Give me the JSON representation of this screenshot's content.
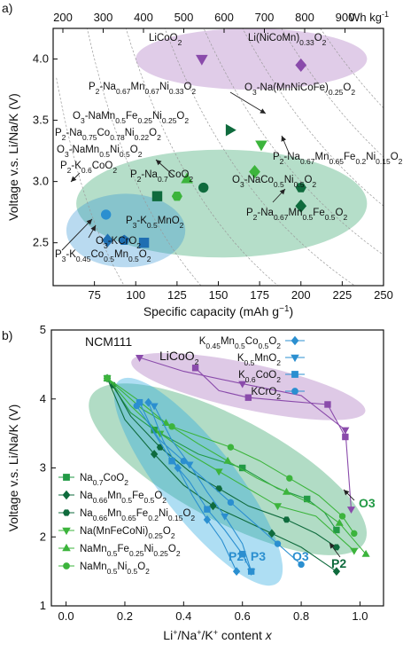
{
  "chart_data": [
    {
      "panel_label": "a)",
      "type": "scatter",
      "xlabel": "Specific capacity (mAh g",
      "xlabel_sup": "−1",
      "xlabel_end": ")",
      "ylabel": "Voltage v.s. Li/Na/K (V)",
      "xlim": [
        50,
        250
      ],
      "ylim": [
        2.15,
        4.25
      ],
      "x_ticks": [
        75,
        100,
        125,
        150,
        175,
        200,
        225,
        250
      ],
      "y_ticks": [
        2.5,
        3.0,
        3.5,
        4.0
      ],
      "top_axis": {
        "ticks": [
          200,
          300,
          400,
          500,
          600,
          700,
          800,
          900
        ],
        "unit": "Wh kg",
        "unit_sup": "-1"
      },
      "groups": [
        {
          "name": "Li",
          "color": "#a064b8",
          "region": {
            "cx": 170,
            "cy": 4.0,
            "rx": 70,
            "ry": 0.25
          }
        },
        {
          "name": "Na",
          "color": "#1f9a5a",
          "region": {
            "cx": 152,
            "cy": 2.82,
            "rx": 88,
            "ry": 0.44
          }
        },
        {
          "name": "K",
          "color": "#2b8fd0",
          "region": {
            "cx": 94,
            "cy": 2.6,
            "rx": 36,
            "ry": 0.3
          }
        }
      ],
      "points": [
        {
          "label": "LiCoO2",
          "x": 140,
          "y": 4.0,
          "marker": "triangle-down",
          "color": "#8a4bab"
        },
        {
          "label": "Li(NiCoMn)0.33O2",
          "x": 200,
          "y": 3.95,
          "marker": "diamond",
          "color": "#8a4bab"
        },
        {
          "label": "P2-Na0.67Mn0.67Ni0.33O2",
          "x": 157,
          "y": 3.42,
          "marker": "triangle-right",
          "color": "#0f6b3d"
        },
        {
          "label": "O3-Na(MnNiCoFe)0.25O2",
          "x": 176,
          "y": 3.3,
          "marker": "triangle-down",
          "color": "#3cb43c"
        },
        {
          "label": "O3-NaMn0.5Fe0.25Ni0.25O2",
          "x": 131,
          "y": 3.02,
          "marker": "triangle-up",
          "color": "#3cb43c"
        },
        {
          "label": "P2-Na0.75Co0.78Ni0.22O2",
          "x": 141,
          "y": 2.95,
          "marker": "circle",
          "color": "#0f6b3d"
        },
        {
          "label": "O3-NaMn0.5Ni0.5O2",
          "x": 125,
          "y": 2.88,
          "marker": "hexagon",
          "color": "#3cb43c"
        },
        {
          "label": "P2-Na0.67Mn0.65Fe0.2Ni0.15O2",
          "x": 172,
          "y": 3.08,
          "marker": "diamond",
          "color": "#3cb43c"
        },
        {
          "label": "P2-Na0.7CoO2",
          "x": 113,
          "y": 2.88,
          "marker": "square",
          "color": "#0f6b3d"
        },
        {
          "label": "O3-NaCo0.5Ni0.5O2",
          "x": 200,
          "y": 2.95,
          "marker": "hexagon",
          "color": "#0f6b3d"
        },
        {
          "label": "P2-Na0.67Mn0.5Fe0.5O2",
          "x": 200,
          "y": 2.8,
          "marker": "diamond",
          "color": "#0f6b3d"
        },
        {
          "label": "P2-K0.6CoO2",
          "x": 82,
          "y": 2.73,
          "marker": "circle",
          "color": "#2b8fd0"
        },
        {
          "label": "P3-K0.45Co0.5Mn0.5O2",
          "x": 83,
          "y": 2.52,
          "marker": "diamond",
          "color": "#1f6fb2"
        },
        {
          "label": "O3-KCrO2",
          "x": 93,
          "y": 2.52,
          "marker": "pentagon",
          "color": "#1f6fb2"
        },
        {
          "label": "P3-K0.5MnO2",
          "x": 105,
          "y": 2.5,
          "marker": "square",
          "color": "#1f6fb2"
        }
      ]
    },
    {
      "panel_label": "b)",
      "type": "line",
      "xlabel": "Li+/Na+/K+ content x",
      "ylabel": "Voltage v.s. Li/Na/K (V)",
      "xlim": [
        -0.05,
        1.08
      ],
      "ylim": [
        1,
        5
      ],
      "x_ticks": [
        0.0,
        0.2,
        0.4,
        0.6,
        0.8,
        1.0
      ],
      "y_ticks": [
        1,
        2,
        3,
        4,
        5
      ],
      "annotations": {
        "ncm": "NCM111",
        "lco": "LiCoO2",
        "o3": "O3",
        "p2": "P2",
        "p2p3": "P2, P3",
        "o3k": "O3"
      },
      "series": [
        {
          "name": "NCM111",
          "group": "Li",
          "color": "#8a4bab",
          "marker": "triangle-down",
          "points": [
            [
              0.25,
              4.6
            ],
            [
              0.4,
              4.4
            ],
            [
              0.6,
              4.22
            ],
            [
              0.8,
              4.05
            ],
            [
              0.95,
              3.55
            ],
            [
              0.97,
              2.4
            ]
          ]
        },
        {
          "name": "LiCoO2",
          "group": "Li",
          "color": "#8a4bab",
          "marker": "square",
          "points": [
            [
              0.44,
              4.45
            ],
            [
              0.52,
              4.12
            ],
            [
              0.62,
              4.02
            ],
            [
              0.75,
              3.97
            ],
            [
              0.89,
              3.92
            ],
            [
              0.95,
              3.45
            ]
          ]
        },
        {
          "name": "Na0.7CoO2",
          "group": "Na",
          "color": "#229a45",
          "marker": "square",
          "legend": true,
          "points": [
            [
              0.14,
              4.3
            ],
            [
              0.22,
              3.8
            ],
            [
              0.3,
              3.55
            ],
            [
              0.45,
              3.2
            ],
            [
              0.6,
              3.0
            ],
            [
              0.72,
              2.7
            ],
            [
              0.82,
              2.55
            ],
            [
              0.88,
              2.35
            ],
            [
              0.92,
              2.1
            ]
          ]
        },
        {
          "name": "Na0.66Mn0.5Fe0.5O2",
          "group": "Na",
          "color": "#0f6b3d",
          "marker": "diamond",
          "legend": true,
          "points": [
            [
              0.14,
              4.3
            ],
            [
              0.2,
              3.7
            ],
            [
              0.3,
              3.2
            ],
            [
              0.4,
              2.75
            ],
            [
              0.5,
              2.45
            ],
            [
              0.6,
              2.25
            ],
            [
              0.7,
              2.05
            ],
            [
              0.8,
              1.85
            ],
            [
              0.92,
              1.5
            ]
          ]
        },
        {
          "name": "Na0.66Mn0.65Fe0.2Ni0.15O2",
          "group": "Na",
          "color": "#0f6b3d",
          "marker": "hexagon",
          "legend": true,
          "points": [
            [
              0.16,
              4.2
            ],
            [
              0.22,
              3.75
            ],
            [
              0.32,
              3.3
            ],
            [
              0.42,
              2.95
            ],
            [
              0.52,
              2.7
            ],
            [
              0.62,
              2.45
            ],
            [
              0.75,
              2.25
            ],
            [
              0.85,
              2.05
            ],
            [
              0.92,
              1.85
            ]
          ]
        },
        {
          "name": "Na(MnFeCoNi)0.25O2",
          "group": "Na",
          "color": "#3cb43c",
          "marker": "triangle-down",
          "legend": true,
          "points": [
            [
              0.14,
              4.3
            ],
            [
              0.22,
              3.9
            ],
            [
              0.32,
              3.5
            ],
            [
              0.42,
              3.2
            ],
            [
              0.52,
              2.95
            ],
            [
              0.62,
              2.7
            ],
            [
              0.72,
              2.45
            ],
            [
              0.85,
              2.3
            ],
            [
              0.98,
              1.8
            ]
          ]
        },
        {
          "name": "NaMn0.5Fe0.25Ni0.25O2",
          "group": "Na",
          "color": "#3cb43c",
          "marker": "triangle-up",
          "legend": true,
          "points": [
            [
              0.14,
              4.3
            ],
            [
              0.24,
              4.0
            ],
            [
              0.34,
              3.65
            ],
            [
              0.45,
              3.35
            ],
            [
              0.55,
              3.1
            ],
            [
              0.65,
              2.85
            ],
            [
              0.75,
              2.65
            ],
            [
              0.85,
              2.45
            ],
            [
              0.93,
              2.2
            ],
            [
              1.02,
              1.75
            ]
          ]
        },
        {
          "name": "NaMn0.5Ni0.5O2",
          "group": "Na",
          "color": "#3cb43c",
          "marker": "circle",
          "legend": true,
          "points": [
            [
              0.14,
              4.3
            ],
            [
              0.26,
              3.85
            ],
            [
              0.36,
              3.6
            ],
            [
              0.46,
              3.45
            ],
            [
              0.56,
              3.3
            ],
            [
              0.66,
              3.1
            ],
            [
              0.76,
              2.85
            ],
            [
              0.86,
              2.6
            ],
            [
              0.94,
              2.3
            ],
            [
              0.98,
              2.05
            ]
          ]
        },
        {
          "name": "K0.45Mn0.5Co0.5O2",
          "group": "K",
          "color": "#2b8fd0",
          "marker": "diamond",
          "legend": true,
          "points": [
            [
              0.28,
              3.95
            ],
            [
              0.33,
              3.4
            ],
            [
              0.38,
              3.0
            ],
            [
              0.43,
              2.6
            ],
            [
              0.48,
              2.25
            ],
            [
              0.53,
              1.95
            ],
            [
              0.58,
              1.5
            ]
          ]
        },
        {
          "name": "K0.5MnO2",
          "group": "K",
          "color": "#2b8fd0",
          "marker": "triangle-down",
          "legend": true,
          "points": [
            [
              0.3,
              3.9
            ],
            [
              0.36,
              3.4
            ],
            [
              0.42,
              3.05
            ],
            [
              0.48,
              2.65
            ],
            [
              0.54,
              2.3
            ],
            [
              0.6,
              1.9
            ],
            [
              0.63,
              1.5
            ]
          ]
        },
        {
          "name": "K0.6CoO2",
          "group": "K",
          "color": "#2b8fd0",
          "marker": "square",
          "legend": true,
          "points": [
            [
              0.25,
              3.95
            ],
            [
              0.3,
              3.5
            ],
            [
              0.36,
              3.1
            ],
            [
              0.42,
              2.8
            ],
            [
              0.48,
              2.4
            ],
            [
              0.54,
              2.1
            ],
            [
              0.6,
              1.75
            ],
            [
              0.63,
              1.5
            ]
          ]
        },
        {
          "name": "KCrO2",
          "group": "K",
          "color": "#2b8fd0",
          "marker": "circle",
          "legend": true,
          "points": [
            [
              0.24,
              3.9
            ],
            [
              0.32,
              3.4
            ],
            [
              0.4,
              3.1
            ],
            [
              0.48,
              2.8
            ],
            [
              0.56,
              2.5
            ],
            [
              0.64,
              2.2
            ],
            [
              0.72,
              1.9
            ],
            [
              0.8,
              1.6
            ]
          ]
        }
      ]
    }
  ]
}
